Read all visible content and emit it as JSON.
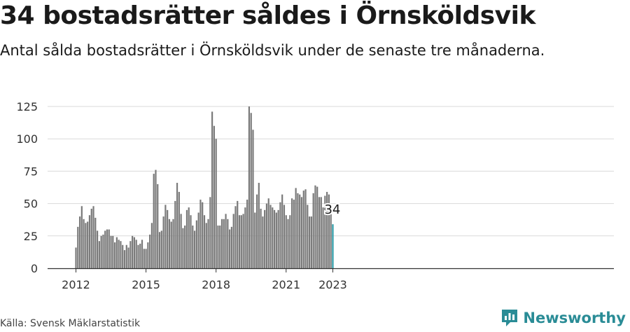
{
  "header": {
    "title": "34 bostadsrätter såldes i Örnsköldsvik",
    "subtitle": "Antal sålda bostadsrätter i Örnsköldsvik under de senaste tre månaderna."
  },
  "footer": {
    "source": "Källa: Svensk Mäklarstatistik",
    "brand": "Newsworthy"
  },
  "colors": {
    "bar": "#7a7a7a",
    "highlight": "#2a9aa6",
    "grid": "#d9d9d9",
    "axis": "#333333",
    "brand": "#2a8c96"
  },
  "chart_data": {
    "type": "bar",
    "x": [
      "2012-01",
      "2012-02",
      "2012-03",
      "2012-04",
      "2012-05",
      "2012-06",
      "2012-07",
      "2012-08",
      "2012-09",
      "2012-10",
      "2012-11",
      "2012-12",
      "2013-01",
      "2013-02",
      "2013-03",
      "2013-04",
      "2013-05",
      "2013-06",
      "2013-07",
      "2013-08",
      "2013-09",
      "2013-10",
      "2013-11",
      "2013-12",
      "2014-01",
      "2014-02",
      "2014-03",
      "2014-04",
      "2014-05",
      "2014-06",
      "2014-07",
      "2014-08",
      "2014-09",
      "2014-10",
      "2014-11",
      "2014-12",
      "2015-01",
      "2015-02",
      "2015-03",
      "2015-04",
      "2015-05",
      "2015-06",
      "2015-07",
      "2015-08",
      "2015-09",
      "2015-10",
      "2015-11",
      "2015-12",
      "2016-01",
      "2016-02",
      "2016-03",
      "2016-04",
      "2016-05",
      "2016-06",
      "2016-07",
      "2016-08",
      "2016-09",
      "2016-10",
      "2016-11",
      "2016-12",
      "2017-01",
      "2017-02",
      "2017-03",
      "2017-04",
      "2017-05",
      "2017-06",
      "2017-07",
      "2017-08",
      "2017-09",
      "2017-10",
      "2017-11",
      "2017-12",
      "2018-01",
      "2018-02",
      "2018-03",
      "2018-04",
      "2018-05",
      "2018-06",
      "2018-07",
      "2018-08",
      "2018-09",
      "2018-10",
      "2018-11",
      "2018-12",
      "2019-01",
      "2019-02",
      "2019-03",
      "2019-04",
      "2019-05",
      "2019-06",
      "2019-07",
      "2019-08",
      "2019-09",
      "2019-10",
      "2019-11",
      "2019-12",
      "2020-01",
      "2020-02",
      "2020-03",
      "2020-04",
      "2020-05",
      "2020-06",
      "2020-07",
      "2020-08",
      "2020-09",
      "2020-10",
      "2020-11",
      "2020-12",
      "2021-01",
      "2021-02",
      "2021-03",
      "2021-04",
      "2021-05",
      "2021-06",
      "2021-07",
      "2021-08",
      "2021-09",
      "2021-10",
      "2021-11",
      "2021-12",
      "2022-01",
      "2022-02",
      "2022-03",
      "2022-04",
      "2022-05",
      "2022-06",
      "2022-07",
      "2022-08",
      "2022-09",
      "2022-10",
      "2022-11",
      "2022-12",
      "2023-01"
    ],
    "values": [
      16,
      32,
      40,
      48,
      38,
      35,
      36,
      41,
      46,
      48,
      39,
      29,
      21,
      25,
      26,
      29,
      30,
      30,
      25,
      25,
      20,
      24,
      22,
      21,
      18,
      14,
      18,
      16,
      21,
      25,
      24,
      22,
      18,
      19,
      22,
      15,
      15,
      20,
      26,
      35,
      73,
      76,
      65,
      28,
      29,
      40,
      49,
      45,
      38,
      36,
      38,
      52,
      66,
      59,
      42,
      31,
      33,
      45,
      47,
      41,
      33,
      29,
      37,
      43,
      53,
      51,
      41,
      35,
      38,
      55,
      121,
      110,
      100,
      33,
      33,
      38,
      38,
      42,
      38,
      30,
      32,
      42,
      48,
      52,
      41,
      41,
      42,
      47,
      53,
      125,
      120,
      107,
      43,
      57,
      66,
      46,
      40,
      45,
      50,
      54,
      49,
      47,
      45,
      43,
      45,
      51,
      57,
      49,
      41,
      38,
      41,
      54,
      53,
      62,
      58,
      57,
      55,
      60,
      61,
      49,
      40,
      40,
      58,
      64,
      63,
      55,
      55,
      47,
      56,
      59,
      57,
      42,
      34
    ],
    "title": "34 bostadsrätter såldes i Örnsköldsvik",
    "subtitle": "Antal sålda bostadsrätter i Örnsköldsvik under de senaste tre månaderna.",
    "xlabel": "",
    "ylabel": "",
    "ylim": [
      0,
      130
    ],
    "yticks": [
      0,
      25,
      50,
      75,
      100,
      125
    ],
    "xtick_labels": [
      "2012",
      "2015",
      "2018",
      "2021",
      "2023"
    ],
    "xtick_dates": [
      "2012-01",
      "2015-01",
      "2018-01",
      "2021-01",
      "2023-01"
    ],
    "annotation": {
      "x": "2023-01",
      "label": "34"
    },
    "grid": true,
    "legend": "none"
  }
}
